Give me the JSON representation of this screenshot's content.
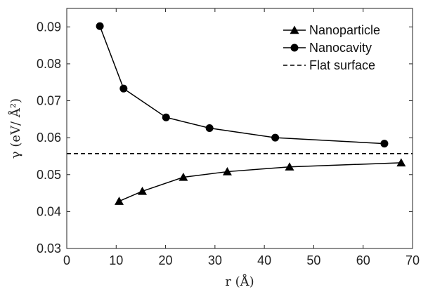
{
  "chart_data": {
    "type": "line",
    "xlabel": "r (Å)",
    "ylabel": "γ (eV/ Å²)",
    "xlim": [
      0,
      70
    ],
    "ylim": [
      0.03,
      0.095
    ],
    "xticks": [
      "0",
      "10",
      "20",
      "30",
      "40",
      "50",
      "60",
      "70"
    ],
    "yticks": [
      "0.03",
      "0.04",
      "0.05",
      "0.06",
      "0.07",
      "0.08",
      "0.09"
    ],
    "legend_position": "top-right",
    "series": [
      {
        "name": "Nanoparticle",
        "marker": "triangle",
        "style": "solid",
        "x": [
          10.6,
          15.3,
          23.6,
          32.5,
          45.1,
          67.7
        ],
        "y": [
          0.0428,
          0.0455,
          0.0493,
          0.0508,
          0.0521,
          0.0532
        ]
      },
      {
        "name": "Nanocavity",
        "marker": "circle",
        "style": "solid",
        "x": [
          6.7,
          11.5,
          20.1,
          28.9,
          42.2,
          64.3
        ],
        "y": [
          0.0902,
          0.0733,
          0.0655,
          0.0626,
          0.06,
          0.0584
        ]
      },
      {
        "name": "Flat surface",
        "marker": "none",
        "style": "dashed",
        "x": [
          0,
          70
        ],
        "y": [
          0.0557,
          0.0557
        ]
      }
    ]
  }
}
